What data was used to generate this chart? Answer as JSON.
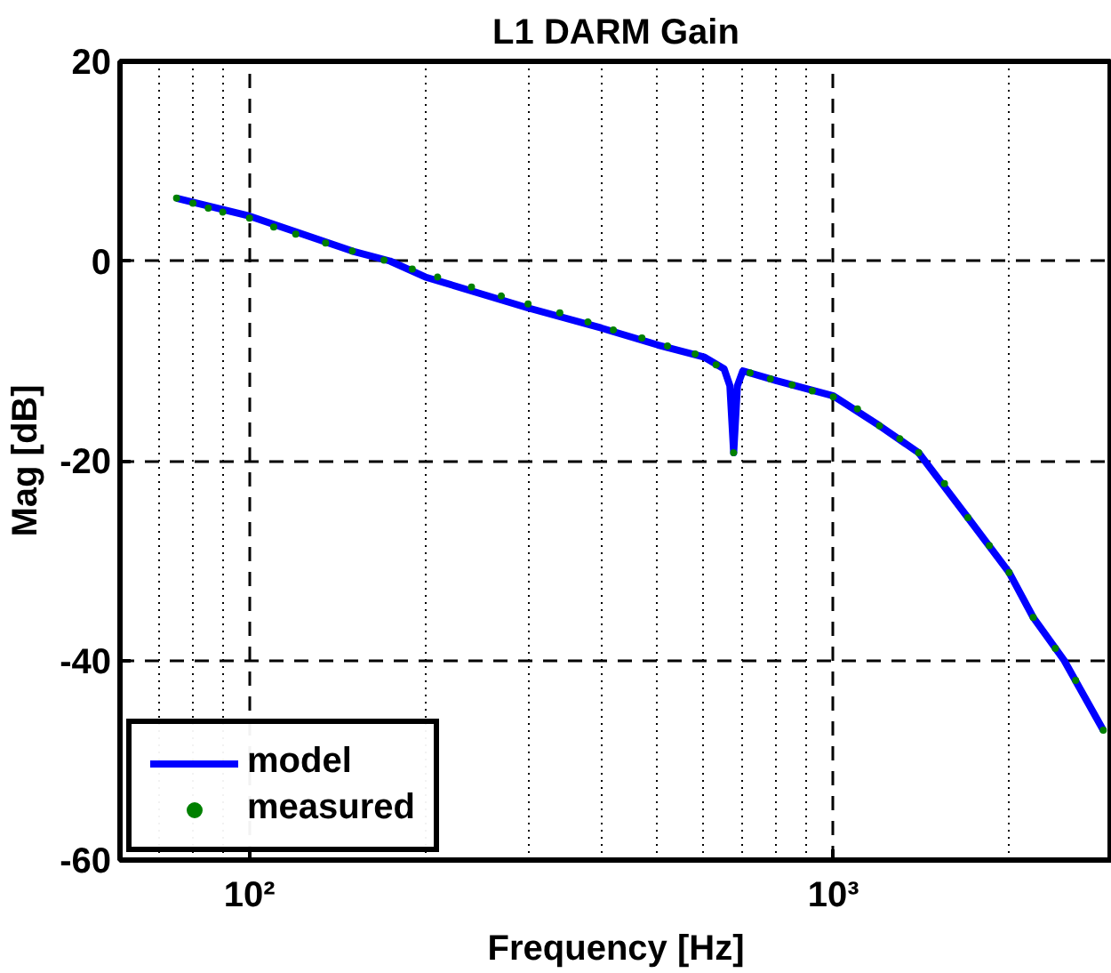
{
  "chart_data": {
    "type": "line",
    "title": "L1 DARM Gain",
    "xlabel": "Frequency [Hz]",
    "ylabel": "Mag [dB]",
    "log": "x",
    "xlim": [
      60,
      3000
    ],
    "ylim": [
      -60,
      20
    ],
    "xticks": [
      {
        "value": 100,
        "label": "10²"
      },
      {
        "value": 1000,
        "label": "10³"
      }
    ],
    "yticks": [
      -60,
      -40,
      -20,
      0,
      20
    ],
    "grid": true,
    "legend": "bottom left",
    "series": [
      {
        "name": "model",
        "color": "#0000ff",
        "x": [
          75,
          100,
          150,
          174,
          200,
          300,
          400,
          500,
          600,
          650,
          665,
          675,
          685,
          700,
          800,
          1000,
          1200,
          1400,
          1700,
          2000,
          2200,
          2485,
          2900
        ],
        "values": [
          6.3,
          4.5,
          1.0,
          0,
          -1.6,
          -4.7,
          -6.7,
          -8.4,
          -9.6,
          -10.8,
          -12.5,
          -19.2,
          -12.5,
          -11,
          -12,
          -13.5,
          -16.5,
          -19.2,
          -25.7,
          -31.2,
          -35.7,
          -40,
          -47
        ]
      },
      {
        "name": "measured",
        "type": "scatter",
        "marker": "circle",
        "color": "#008000",
        "x": [
          75,
          80,
          85,
          90,
          100,
          110,
          120,
          135,
          150,
          170,
          190,
          210,
          240,
          270,
          300,
          340,
          380,
          420,
          470,
          520,
          580,
          630,
          675,
          720,
          780,
          850,
          920,
          1000,
          1100,
          1200,
          1300,
          1400,
          1550,
          1700,
          1850,
          2000,
          2200,
          2400,
          2600,
          2900
        ],
        "values": [
          6.3,
          5.8,
          5.3,
          4.9,
          4.3,
          3.4,
          2.7,
          1.8,
          1.0,
          0.1,
          -0.8,
          -1.6,
          -2.6,
          -3.5,
          -4.3,
          -5.2,
          -6.1,
          -6.9,
          -7.7,
          -8.5,
          -9.3,
          -10.4,
          -19.2,
          -11.2,
          -11.8,
          -12.4,
          -13.0,
          -13.6,
          -14.8,
          -16.5,
          -17.8,
          -19.2,
          -22.3,
          -25.7,
          -28.5,
          -31.2,
          -35.7,
          -38.8,
          -42.0,
          -47
        ]
      }
    ]
  }
}
